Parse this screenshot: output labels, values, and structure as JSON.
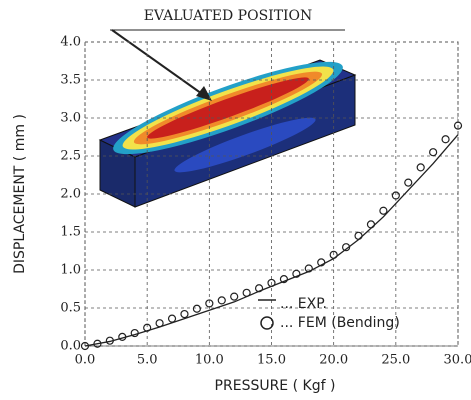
{
  "chart_data": {
    "type": "line",
    "annotation": "EVALUATED POSITION",
    "xlabel": "PRESSURE ( Kgf )",
    "ylabel": "DISPLACEMENT ( mm )",
    "xlim": [
      0,
      30
    ],
    "ylim": [
      0,
      4
    ],
    "xticks": [
      {
        "value": 0,
        "label": "0.0"
      },
      {
        "value": 5,
        "label": "5.0"
      },
      {
        "value": 10,
        "label": "10.0"
      },
      {
        "value": 15,
        "label": "15.0"
      },
      {
        "value": 20,
        "label": "20.0"
      },
      {
        "value": 25,
        "label": "25.0"
      },
      {
        "value": 30,
        "label": "30.0"
      }
    ],
    "yticks": [
      {
        "value": 0,
        "label": "0.0"
      },
      {
        "value": 0.5,
        "label": "0.5"
      },
      {
        "value": 1,
        "label": "1.0"
      },
      {
        "value": 1.5,
        "label": "1.5"
      },
      {
        "value": 2,
        "label": "2.0"
      },
      {
        "value": 2.5,
        "label": "2.5"
      },
      {
        "value": 3,
        "label": "3.0"
      },
      {
        "value": 3.5,
        "label": "3.5"
      },
      {
        "value": 4,
        "label": "4.0"
      }
    ],
    "grid": true,
    "series": [
      {
        "name": "... EXP.",
        "color": "#222222",
        "marker": "line",
        "x": [
          0,
          2,
          4,
          6,
          8,
          10,
          12,
          14,
          16,
          18,
          20,
          22,
          24,
          26,
          28,
          30
        ],
        "values": [
          0,
          0.06,
          0.15,
          0.25,
          0.36,
          0.47,
          0.58,
          0.72,
          0.85,
          0.98,
          1.15,
          1.4,
          1.7,
          2.05,
          2.4,
          2.78
        ]
      },
      {
        "name": "... FEM (Bending)",
        "color": "#222222",
        "marker": "circle",
        "x": [
          0,
          1,
          2,
          3,
          4,
          5,
          6,
          7,
          8,
          9,
          10,
          11,
          12,
          13,
          14,
          15,
          16,
          17,
          18,
          19,
          20,
          21,
          22,
          23,
          24,
          25,
          26,
          27,
          28,
          29,
          30
        ],
        "values": [
          0,
          0.03,
          0.07,
          0.12,
          0.17,
          0.24,
          0.3,
          0.36,
          0.42,
          0.49,
          0.56,
          0.6,
          0.65,
          0.7,
          0.76,
          0.83,
          0.88,
          0.95,
          1.02,
          1.1,
          1.2,
          1.3,
          1.45,
          1.6,
          1.78,
          1.98,
          2.15,
          2.35,
          2.55,
          2.72,
          2.9
        ]
      }
    ]
  }
}
